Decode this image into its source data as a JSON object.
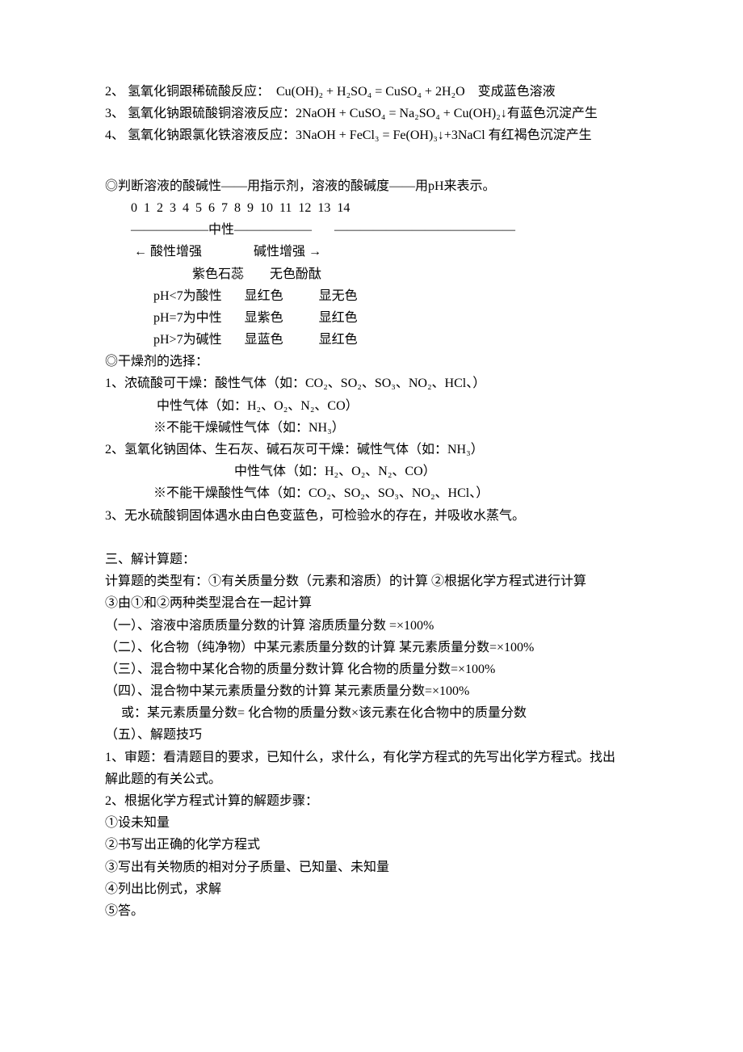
{
  "equations": [
    "2、 氢氧化铜跟稀硫酸反应：  Cu(OH)₂ + H₂SO₄ = CuSO₄ + 2H₂O    变成蓝色溶液",
    "3、 氢氧化钠跟硫酸铜溶液反应：2NaOH + CuSO₄ = Na₂SO₄ + Cu(OH)₂↓有蓝色沉淀产生",
    "4、 氢氧化钠跟氯化铁溶液反应：3NaOH + FeCl₃ = Fe(OH)₃↓+3NaCl 有红褐色沉淀产生"
  ],
  "ph_section": {
    "title": "◎判断溶液的酸碱性——用指示剂，溶液的酸碱度——用pH来表示。",
    "scale": "        0  1  2  3  4  5  6  7  8  9  10  11  12  13  14",
    "divider": "        ——————中性——————       ——————————————",
    "arrows": "         ← 酸性增强                碱性增强 →",
    "header": "                           紫色石蕊        无色酚酞",
    "rows": [
      "               pH<7为酸性       显红色           显无色",
      "               pH=7为中性       显紫色           显红色",
      "               pH>7为碱性       显蓝色           显红色"
    ]
  },
  "dry_section": {
    "title": "◎干燥剂的选择：",
    "lines": [
      "1、浓硫酸可干燥：酸性气体（如：CO₂、SO₂、SO₃、NO₂、HCl、）",
      "                中性气体（如：H₂、O₂、N₂、CO）",
      "               ※不能干燥碱性气体（如：NH₃）",
      "2、氢氧化钠固体、生石灰、碱石灰可干燥：碱性气体（如：NH₃）",
      "                                        中性气体（如：H₂、O₂、N₂、CO）",
      "               ※不能干燥酸性气体（如：CO₂、SO₂、SO₃、NO₂、HCl、）",
      "3、无水硫酸铜固体遇水由白色变蓝色，可检验水的存在，并吸收水蒸气。"
    ]
  },
  "calc_section": {
    "title": "三、解计算题：",
    "lines": [
      "计算题的类型有：①有关质量分数（元素和溶质）的计算 ②根据化学方程式进行计算",
      "③由①和②两种类型混合在一起计算",
      "（一）、溶液中溶质质量分数的计算 溶质质量分数 =×100%",
      "（二）、化合物（纯净物）中某元素质量分数的计算 某元素质量分数=×100%",
      "（三）、混合物中某化合物的质量分数计算 化合物的质量分数=×100%",
      "（四）、混合物中某元素质量分数的计算 某元素质量分数=×100%",
      "     或：某元素质量分数= 化合物的质量分数×该元素在化合物中的质量分数",
      "（五）、解题技巧",
      "1、审题：看清题目的要求，已知什么，求什么，有化学方程式的先写出化学方程式。找出",
      "解此题的有关公式。",
      "2、根据化学方程式计算的解题步骤：",
      "①设未知量",
      "②书写出正确的化学方程式",
      "③写出有关物质的相对分子质量、已知量、未知量",
      "④列出比例式，求解",
      "⑤答。"
    ]
  }
}
